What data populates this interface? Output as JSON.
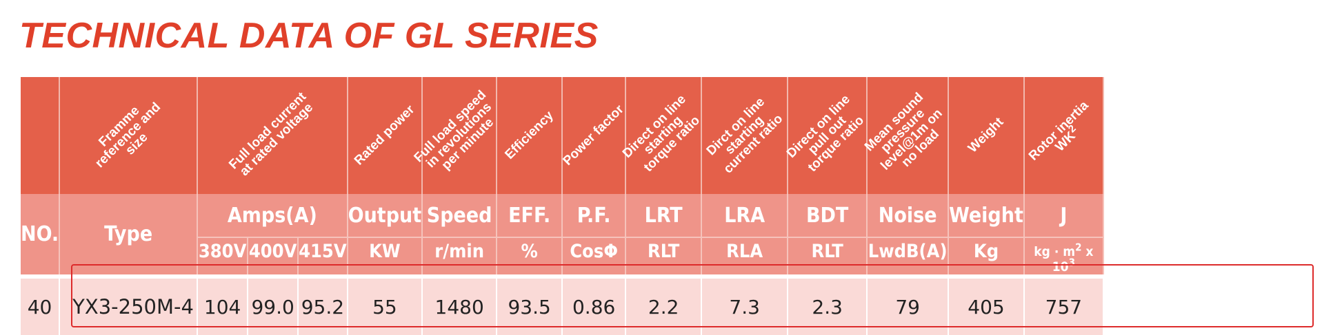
{
  "title": "TECHNICAL DATA OF GL SERIES",
  "rotated_headers": {
    "no": "",
    "frame": "Framme reference and size",
    "current": "Full load current at rated voltage",
    "power": "Rated power",
    "speed": "Full load speed in revolutions per minute",
    "efficiency": "Efficiency",
    "pf": "Power factor",
    "lrt": "Direct on line starting torque ratio",
    "lra": "Dirct on line starting current ratio",
    "bdt": "Direct on line pull out torque ratio",
    "noise": "Mean sound pressure level@1m on no load",
    "weight": "Weight",
    "inertia": "Rotor inertia WK",
    "inertia_sup": "2"
  },
  "symbols": {
    "no": "NO.",
    "type": "Type",
    "amps": "Amps(A)",
    "output": "Output",
    "speed": "Speed",
    "eff": "EFF.",
    "pf": "P.F.",
    "lrt": "LRT",
    "lra": "LRA",
    "bdt": "BDT",
    "noise": "Noise",
    "weight": "Weight",
    "j": "J"
  },
  "units": {
    "v380": "380V",
    "v400": "400V",
    "v415": "415V",
    "kw": "KW",
    "rmin": "r/min",
    "pct": "%",
    "cos": "CosΦ",
    "rlt": "RLT",
    "rla": "RLA",
    "rlt2": "RLT",
    "lwd": "LwdB(A)",
    "kg": "Kg",
    "j_unit": "kg · m",
    "j_sup1": "2",
    "j_mid": " x 10",
    "j_sup2": "3"
  },
  "row": {
    "no": "40",
    "type": "YX3-250M-4",
    "a380": "104",
    "a400": "99.0",
    "a415": "95.2",
    "output": "55",
    "speed": "1480",
    "eff": "93.5",
    "pf": "0.86",
    "lrt": "2.2",
    "lra": "7.3",
    "bdt": "2.3",
    "noise": "79",
    "weight": "405",
    "j": "757"
  },
  "colors": {
    "title": "#e0402a",
    "header_dark": "#e4604a",
    "header_light": "#ef9489",
    "row_bg": "#fadad7",
    "highlight": "#dd2a2a"
  }
}
